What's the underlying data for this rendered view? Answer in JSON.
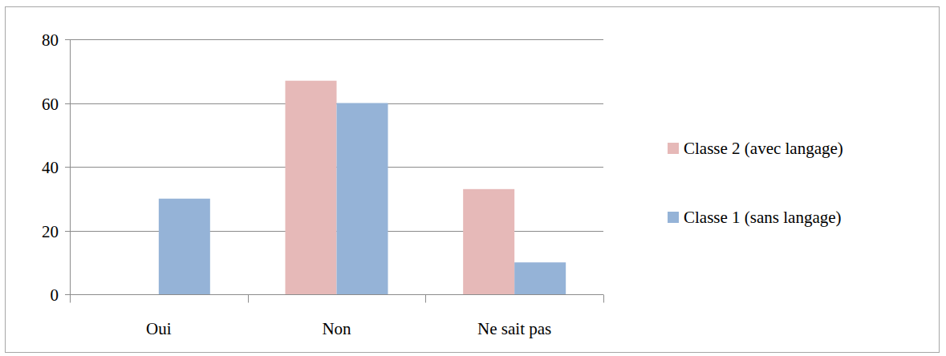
{
  "chart_data": {
    "type": "bar",
    "categories": [
      "Oui",
      "Non",
      "Ne sait pas"
    ],
    "series": [
      {
        "name": "Classe 2 (avec langage)",
        "color": "#e6b9b8",
        "values": [
          0,
          67,
          33
        ]
      },
      {
        "name": "Classe 1 (sans langage)",
        "color": "#95b3d7",
        "values": [
          30,
          60,
          10
        ]
      }
    ],
    "ylim": [
      0,
      80
    ],
    "yticks": [
      0,
      20,
      40,
      60,
      80
    ],
    "grid": true,
    "legend": "right"
  }
}
